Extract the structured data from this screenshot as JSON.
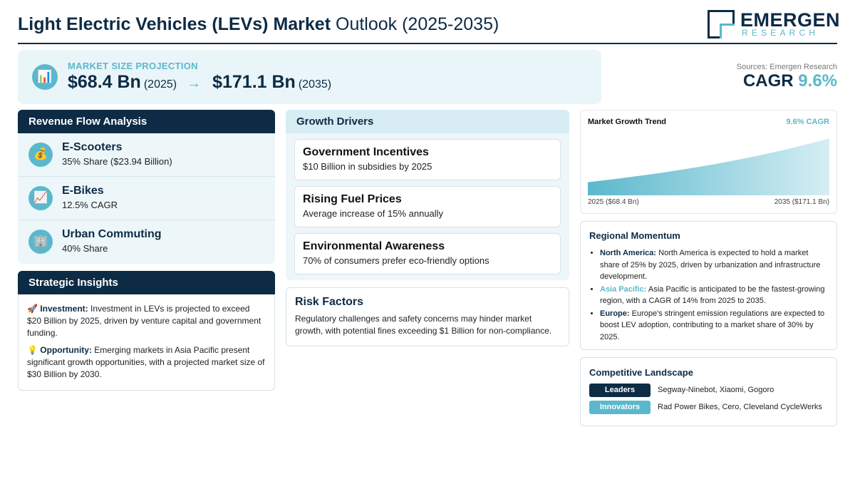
{
  "header": {
    "title_bold": "Light Electric Vehicles (LEVs) Market",
    "title_rest": "Outlook (2025-2035)",
    "logo_name": "EMERGEN",
    "logo_sub": "RESEARCH"
  },
  "projection": {
    "icon": "bar-chart-icon",
    "label": "MARKET SIZE PROJECTION",
    "start_value": "$68.4 Bn",
    "start_year": "(2025)",
    "arrow": "→",
    "end_value": "$171.1 Bn",
    "end_year": "(2035)"
  },
  "sources": "Sources: Emergen Research",
  "cagr": {
    "label": "CAGR",
    "value": "9.6%"
  },
  "revenue_flow": {
    "title": "Revenue Flow Analysis",
    "items": [
      {
        "icon": "money-bag-icon",
        "glyph": "💰",
        "title": "E-Scooters",
        "sub": "35% Share ($23.94 Billion)"
      },
      {
        "icon": "trend-chart-icon",
        "glyph": "📈",
        "title": "E-Bikes",
        "sub": "12.5% CAGR"
      },
      {
        "icon": "building-icon",
        "glyph": "🏢",
        "title": "Urban Commuting",
        "sub": "40% Share"
      }
    ]
  },
  "strategic_insights": {
    "title": "Strategic Insights",
    "investment": {
      "glyph": "🚀",
      "label": "Investment:",
      "text": "Investment in LEVs is projected to exceed $20 Billion by 2025, driven by venture capital and government funding."
    },
    "opportunity": {
      "glyph": "💡",
      "label": "Opportunity:",
      "text": "Emerging markets in Asia Pacific present significant growth opportunities, with a projected market size of $30 Billion by 2030."
    }
  },
  "growth_drivers": {
    "title": "Growth Drivers",
    "items": [
      {
        "title": "Government Incentives",
        "sub": "$10 Billion in subsidies by 2025"
      },
      {
        "title": "Rising Fuel Prices",
        "sub": "Average increase of 15% annually"
      },
      {
        "title": "Environmental Awareness",
        "sub": "70% of consumers prefer eco-friendly options"
      }
    ]
  },
  "risk_factors": {
    "title": "Risk Factors",
    "text": "Regulatory challenges and safety concerns may hinder market growth, with potential fines exceeding $1 Billion for non-compliance."
  },
  "market_trend": {
    "title": "Market Growth Trend",
    "cagr_label": "9.6% CAGR",
    "start_label": "2025 ($68.4 Bn)",
    "end_label": "2035 ($171.1 Bn)",
    "fill_top": "#d6eef4",
    "fill_bottom": "#5bb8cc"
  },
  "chart_data": {
    "type": "area",
    "title": "Market Growth Trend",
    "x": [
      2025,
      2035
    ],
    "series": [
      {
        "values": [
          68.4,
          171.1
        ]
      }
    ],
    "annotations": [
      "9.6% CAGR"
    ],
    "grid": false
  },
  "regional": {
    "title": "Regional Momentum",
    "items": [
      {
        "label": "North America:",
        "text": "North America is expected to hold a market share of 25% by 2025, driven by urbanization and infrastructure development."
      },
      {
        "label": "Asia Pacific:",
        "text": "Asia Pacific is anticipated to be the fastest-growing region, with a CAGR of 14% from 2025 to 2035."
      },
      {
        "label": "Europe:",
        "text": "Europe's stringent emission regulations are expected to boost LEV adoption, contributing to a market share of 30% by 2025."
      }
    ]
  },
  "competitive": {
    "title": "Competitive Landscape",
    "leaders_label": "Leaders",
    "leaders": "Segway-Ninebot, Xiaomi, Gogoro",
    "innovators_label": "Innovators",
    "innovators": "Rad Power Bikes, Cero, Cleveland CycleWerks"
  },
  "colors": {
    "navy": "#0d2b45",
    "teal": "#5bb8cc",
    "light_bg": "#edf6f9"
  }
}
